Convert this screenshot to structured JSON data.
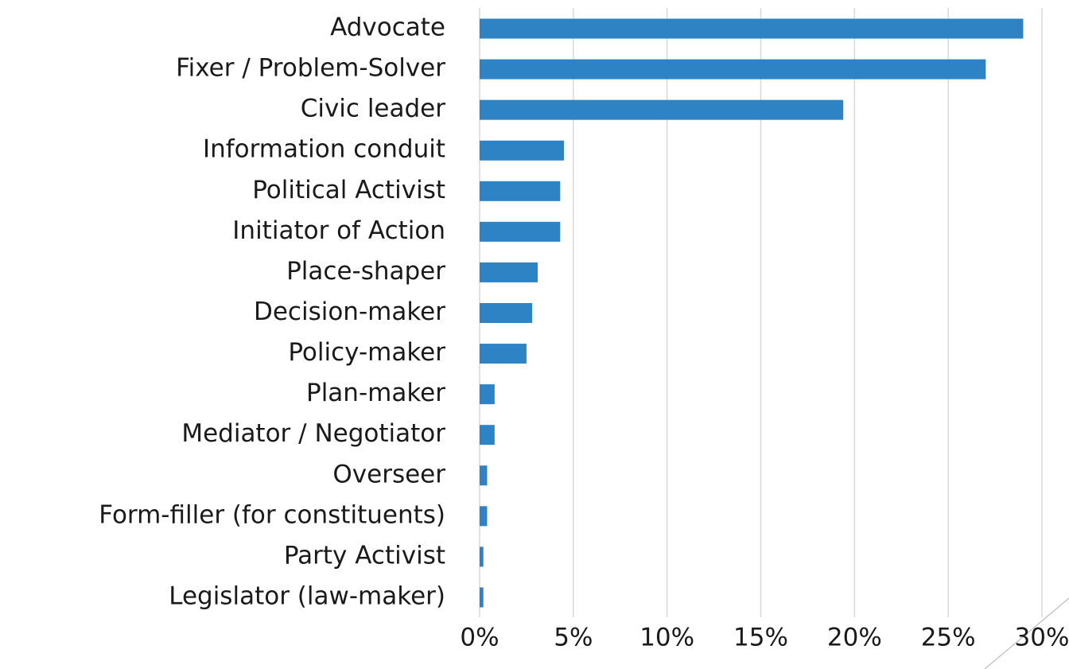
{
  "chart_data": {
    "type": "barh",
    "categories": [
      "Advocate",
      "Fixer / Problem-Solver",
      "Civic leader",
      "Information conduit",
      "Political Activist",
      "Initiator of Action",
      "Place-shaper",
      "Decision-maker",
      "Policy-maker",
      "Plan-maker",
      "Mediator / Negotiator",
      "Overseer",
      "Form-filler (for constituents)",
      "Party Activist",
      "Legislator (law-maker)"
    ],
    "values": [
      29.0,
      27.0,
      19.4,
      4.5,
      4.3,
      4.3,
      3.1,
      2.8,
      2.5,
      0.8,
      0.8,
      0.4,
      0.4,
      0.2,
      0.2
    ],
    "color": "#2e83c4",
    "xlim": [
      0,
      30
    ],
    "xticks": [
      {
        "value": 0,
        "label": "0%"
      },
      {
        "value": 5,
        "label": "5%"
      },
      {
        "value": 10,
        "label": "10%"
      },
      {
        "value": 15,
        "label": "15%"
      },
      {
        "value": 20,
        "label": "20%"
      },
      {
        "value": 25,
        "label": "25%"
      },
      {
        "value": 30,
        "label": "30%"
      }
    ],
    "grid": true
  }
}
